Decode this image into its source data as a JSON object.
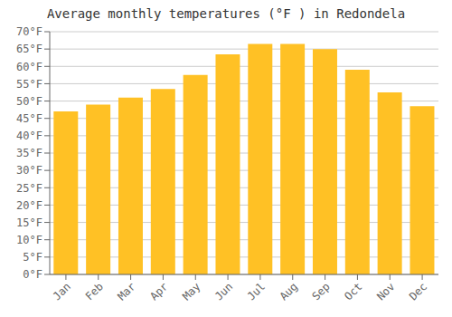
{
  "chart_data": {
    "type": "bar",
    "title": "Average monthly temperatures (°F ) in Redondela",
    "categories": [
      "Jan",
      "Feb",
      "Mar",
      "Apr",
      "May",
      "Jun",
      "Jul",
      "Aug",
      "Sep",
      "Oct",
      "Nov",
      "Dec"
    ],
    "values": [
      47,
      49,
      51,
      53.5,
      57.5,
      63.5,
      66.5,
      66.5,
      65,
      59,
      52.5,
      48.5
    ],
    "color": "#FFC125",
    "ylim": [
      0,
      70
    ],
    "yticks": [
      {
        "value": 0,
        "label": "0°F"
      },
      {
        "value": 5,
        "label": "5°F"
      },
      {
        "value": 10,
        "label": "10°F"
      },
      {
        "value": 15,
        "label": "15°F"
      },
      {
        "value": 20,
        "label": "20°F"
      },
      {
        "value": 25,
        "label": "25°F"
      },
      {
        "value": 30,
        "label": "30°F"
      },
      {
        "value": 35,
        "label": "35°F"
      },
      {
        "value": 40,
        "label": "40°F"
      },
      {
        "value": 45,
        "label": "45°F"
      },
      {
        "value": 50,
        "label": "50°F"
      },
      {
        "value": 55,
        "label": "55°F"
      },
      {
        "value": 60,
        "label": "60°F"
      },
      {
        "value": 65,
        "label": "65°F"
      },
      {
        "value": 70,
        "label": "70°F"
      }
    ],
    "grid": true
  }
}
